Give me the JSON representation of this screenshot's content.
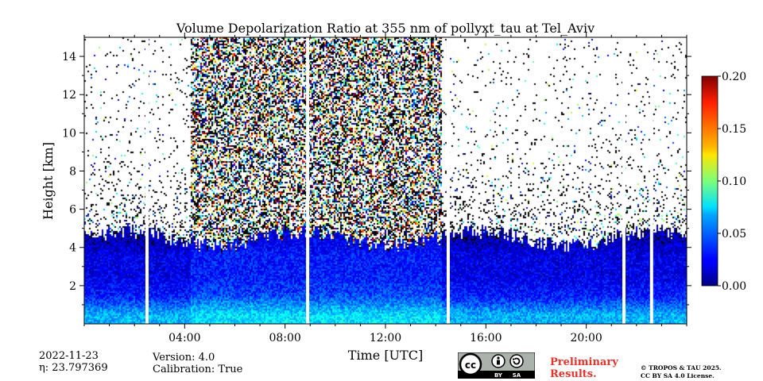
{
  "chart_data": {
    "type": "heatmap",
    "title": "Volume Depolarization Ratio at 355 nm of pollyxt_tau at Tel_Aviv",
    "xlabel": "Time [UTC]",
    "ylabel": "Height [km]",
    "xlim_hours": [
      0,
      24
    ],
    "ylim_km": [
      0,
      15
    ],
    "x_ticks": [
      "04:00",
      "08:00",
      "12:00",
      "16:00",
      "20:00"
    ],
    "x_tick_hours": [
      4,
      8,
      12,
      16,
      20
    ],
    "y_ticks": [
      2,
      4,
      6,
      8,
      10,
      12,
      14
    ],
    "colorbar": {
      "vmin": 0.0,
      "vmax": 0.2,
      "ticks": [
        "0.00",
        "0.05",
        "0.10",
        "0.15",
        "0.20"
      ],
      "tick_values": [
        0.0,
        0.05,
        0.1,
        0.15,
        0.2
      ],
      "colormap": "jet"
    },
    "no_data_gaps_hours": [
      2.5,
      8.9,
      14.5,
      21.5,
      22.6
    ],
    "noisy_daytime_hours": [
      4.2,
      14.2
    ],
    "depol_profile": [
      {
        "height_km": 0.5,
        "depol": 0.06
      },
      {
        "height_km": 1.5,
        "depol": 0.03
      },
      {
        "height_km": 2.5,
        "depol": 0.02
      },
      {
        "height_km": 3.5,
        "depol": 0.02
      },
      {
        "height_km": 4.5,
        "depol": 0.01
      }
    ],
    "aerosol_top_km": 4.5
  },
  "footer": {
    "date": "2022-11-23",
    "eta_label": "η: 23.797369",
    "version": "Version: 4.0",
    "calibration": "Calibration: True",
    "preliminary_line1": "Preliminary",
    "preliminary_line2": "Results.",
    "preliminary_color": "#e8322b",
    "copyright_line1": "© TROPOS & TAU 2025.",
    "copyright_line2": "CC BY SA 4.0 License.",
    "cc_by": "BY",
    "cc_sa": "SA",
    "cc_logo": "cc-icon"
  }
}
